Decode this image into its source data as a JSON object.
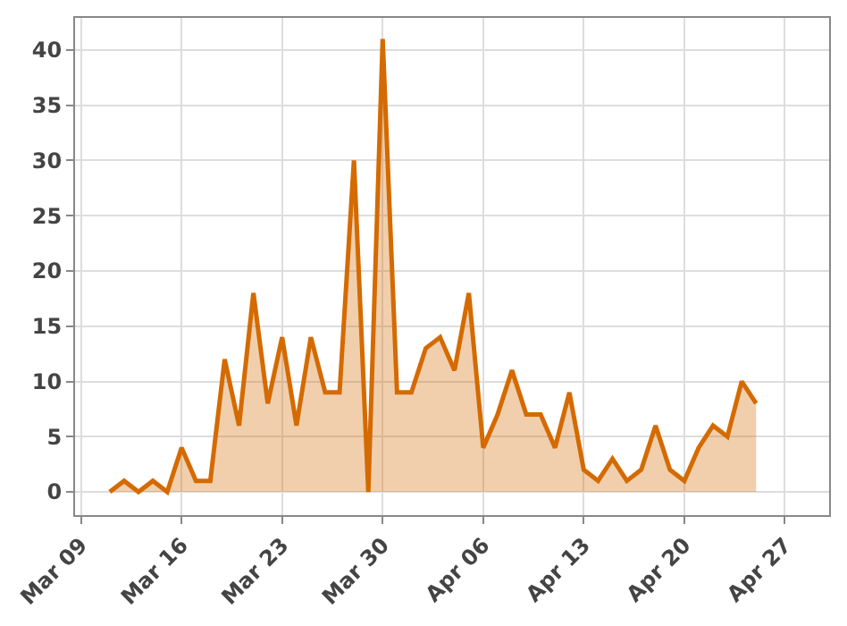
{
  "chart_data": {
    "type": "area",
    "x": [
      "--03-11",
      "--03-12",
      "--03-13",
      "--03-14",
      "--03-15",
      "--03-16",
      "--03-17",
      "--03-18",
      "--03-19",
      "--03-20",
      "--03-21",
      "--03-22",
      "--03-23",
      "--03-24",
      "--03-25",
      "--03-26",
      "--03-27",
      "--03-28",
      "--03-29",
      "--03-30",
      "--03-31",
      "--04-01",
      "--04-02",
      "--04-03",
      "--04-04",
      "--04-05",
      "--04-06",
      "--04-07",
      "--04-08",
      "--04-09",
      "--04-10",
      "--04-11",
      "--04-12",
      "--04-13",
      "--04-14",
      "--04-15",
      "--04-16",
      "--04-17",
      "--04-18",
      "--04-19",
      "--04-20",
      "--04-21",
      "--04-22",
      "--04-23",
      "--04-24",
      "--04-25"
    ],
    "series": [
      {
        "color": "#d46a00",
        "values": [
          0,
          1,
          0,
          1,
          0,
          4,
          1,
          1,
          12,
          6,
          18,
          8,
          14,
          6,
          14,
          9,
          9,
          30,
          0,
          41,
          9,
          9,
          13,
          14,
          11,
          18,
          4,
          7,
          11,
          7,
          7,
          4,
          9,
          2,
          1,
          3,
          1,
          2,
          6,
          2,
          1,
          4,
          6,
          5,
          10,
          8
        ]
      }
    ],
    "xlim": [
      "--03-08T14:00",
      "--04-30T02:00"
    ],
    "xticks": [
      {
        "value": "--03-09",
        "label": "Mar 09"
      },
      {
        "value": "--03-16",
        "label": "Mar 16"
      },
      {
        "value": "--03-23",
        "label": "Mar 23"
      },
      {
        "value": "--03-30",
        "label": "Mar 30"
      },
      {
        "value": "--04-06",
        "label": "Apr 06"
      },
      {
        "value": "--04-13",
        "label": "Apr 13"
      },
      {
        "value": "--04-20",
        "label": "Apr 20"
      },
      {
        "value": "--04-27",
        "label": "Apr 27"
      }
    ],
    "ylim": [
      -2.1,
      42.9
    ],
    "yticks": [
      0,
      5,
      10,
      15,
      20,
      25,
      30,
      35,
      40
    ],
    "grid": true,
    "marker": "none",
    "line_style": "solid"
  }
}
